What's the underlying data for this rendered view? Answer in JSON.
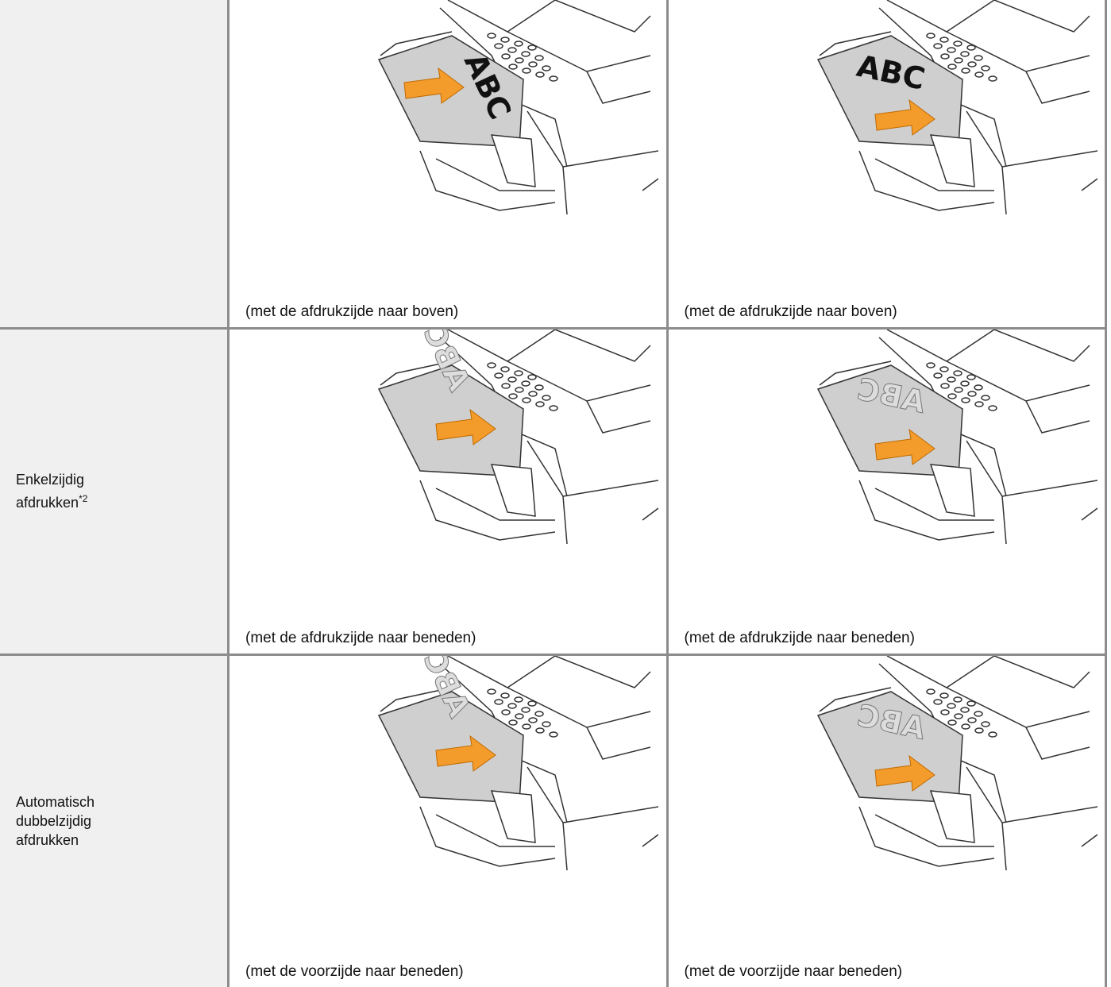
{
  "table": {
    "rows": [
      {
        "cells": [
          {
            "caption": "(met de afdrukzijde naar boven)"
          },
          {
            "caption": "(met de afdrukzijde naar boven)"
          }
        ]
      },
      {
        "label": "Enkelzijdig afdrukken",
        "note": "*2",
        "cells": [
          {
            "caption": "(met de afdrukzijde naar beneden)"
          },
          {
            "caption": "(met de afdrukzijde naar beneden)"
          }
        ]
      },
      {
        "label": "Automatisch dubbelzijdig afdrukken",
        "cells": [
          {
            "caption": "(met de voorzijde naar beneden)"
          },
          {
            "caption": "(met de voorzijde naar beneden)"
          }
        ]
      }
    ]
  },
  "illustration_text": "ABC"
}
